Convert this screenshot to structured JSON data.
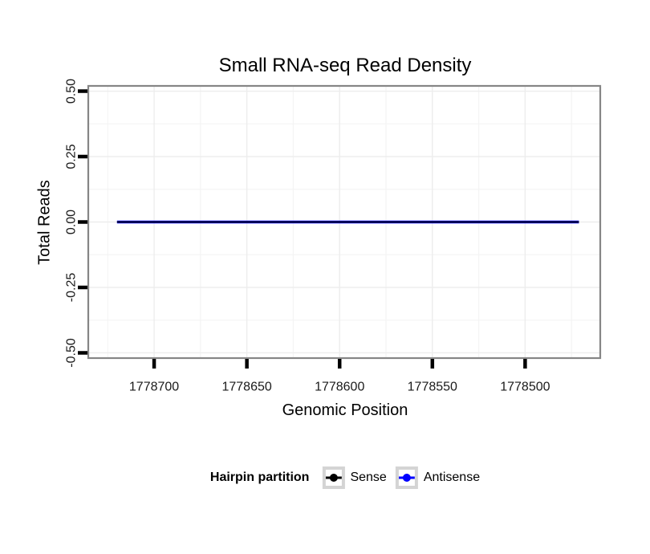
{
  "chart_data": {
    "type": "line",
    "title": "Small RNA-seq Read Density",
    "xlabel": "Genomic Position",
    "ylabel": "Total Reads",
    "x_axis": {
      "reversed": true,
      "range": [
        1778735.5,
        1778459.5
      ],
      "tick_values": [
        1778700,
        1778650,
        1778600,
        1778550,
        1778500
      ],
      "tick_labels": [
        "1778700",
        "1778650",
        "1778600",
        "1778550",
        "1778500"
      ],
      "minor_tick_values": [
        1778725,
        1778675,
        1778625,
        1778575,
        1778525,
        1778475
      ]
    },
    "y_axis": {
      "range": [
        -0.52,
        0.52
      ],
      "tick_values": [
        0.5,
        0.25,
        0,
        -0.25,
        -0.5
      ],
      "tick_labels": [
        "0.50",
        "0.25",
        "0.00",
        "-0.25",
        "-0.50"
      ],
      "minor_tick_values": [
        0.375,
        0.125,
        -0.125,
        -0.375
      ]
    },
    "series": [
      {
        "name": "Sense",
        "color": "#000000",
        "stroke_width": 1.7,
        "points": [
          {
            "x": 1778720,
            "y": 0
          },
          {
            "x": 1778471,
            "y": 0
          }
        ]
      },
      {
        "name": "Antisense",
        "color": "#0000ff",
        "stroke_width": 3.4,
        "points": [
          {
            "x": 1778720,
            "y": 0
          },
          {
            "x": 1778471,
            "y": 0
          }
        ]
      }
    ],
    "legend": {
      "title": "Hairpin partition",
      "position": "bottom",
      "entries": [
        {
          "label": "Sense",
          "color": "#000000"
        },
        {
          "label": "Antisense",
          "color": "#0000ff"
        }
      ]
    },
    "style": {
      "background": "#ffffff",
      "panel_border": "#868686",
      "grid_major": "#ededed",
      "grid_minor": "#f4f4f4",
      "tick_color": "#000000",
      "text_color": "#1a1a1a"
    },
    "grid": true
  }
}
